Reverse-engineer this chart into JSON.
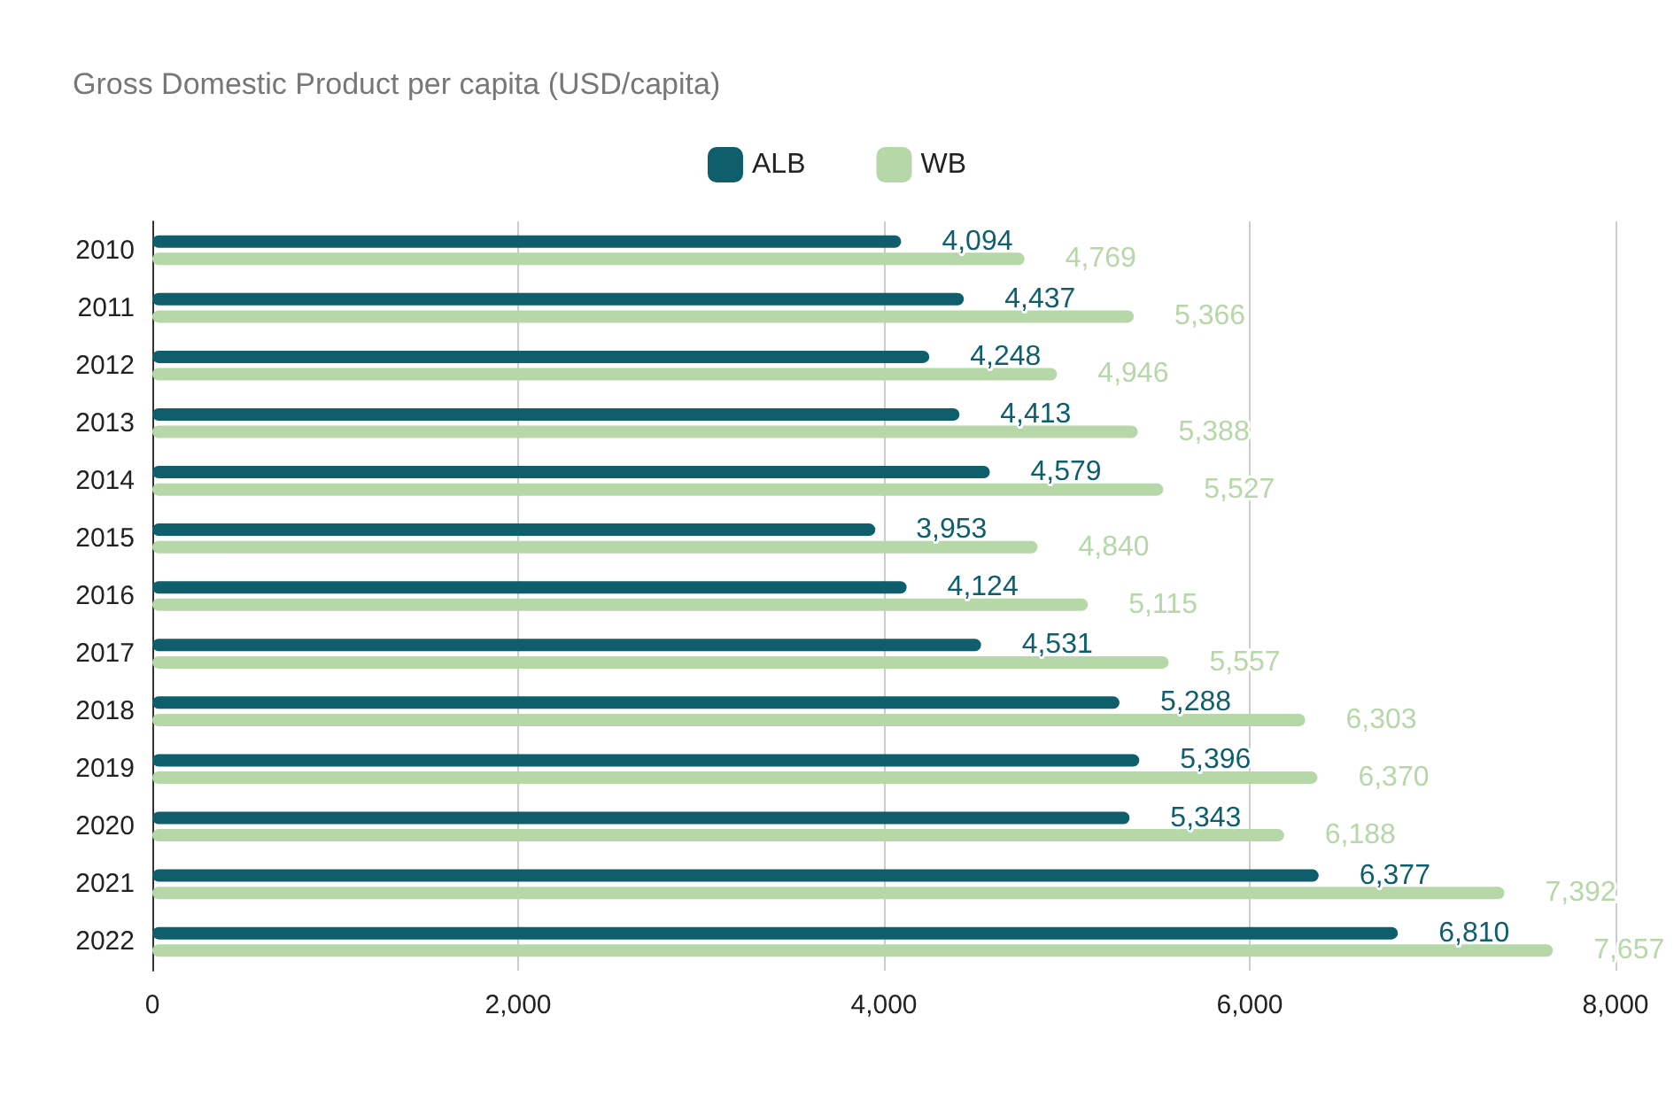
{
  "chart_data": {
    "type": "bar",
    "orientation": "horizontal",
    "title": "Gross Domestic Product per capita (USD/capita)",
    "categories": [
      "2010",
      "2011",
      "2012",
      "2013",
      "2014",
      "2015",
      "2016",
      "2017",
      "2018",
      "2019",
      "2020",
      "2021",
      "2022"
    ],
    "series": [
      {
        "name": "ALB",
        "color": "#0e5e6b",
        "values": [
          4094,
          4437,
          4248,
          4413,
          4579,
          3953,
          4124,
          4531,
          5288,
          5396,
          5343,
          6377,
          6810
        ],
        "value_labels": [
          "4,094",
          "4,437",
          "4,248",
          "4,413",
          "4,579",
          "3,953",
          "4,124",
          "4,531",
          "5,288",
          "5,396",
          "5,343",
          "6,377",
          "6,810"
        ]
      },
      {
        "name": "WB",
        "color": "#b6d7a8",
        "values": [
          4769,
          5366,
          4946,
          5388,
          5527,
          4840,
          5115,
          5557,
          6303,
          6370,
          6188,
          7392,
          7657
        ],
        "value_labels": [
          "4,769",
          "5,366",
          "4,946",
          "5,388",
          "5,527",
          "4,840",
          "5,115",
          "5,557",
          "6,303",
          "6,370",
          "6,188",
          "7,392",
          "7,657"
        ]
      }
    ],
    "xlim": [
      0,
      8000
    ],
    "xticks": [
      0,
      {
        "value": 2000,
        "label": "2,000"
      },
      {
        "value": 4000,
        "label": "4,000"
      },
      {
        "value": 6000,
        "label": "6,000"
      },
      {
        "value": 8000,
        "label": "8,000"
      }
    ],
    "grid": "x",
    "legend": "top"
  }
}
